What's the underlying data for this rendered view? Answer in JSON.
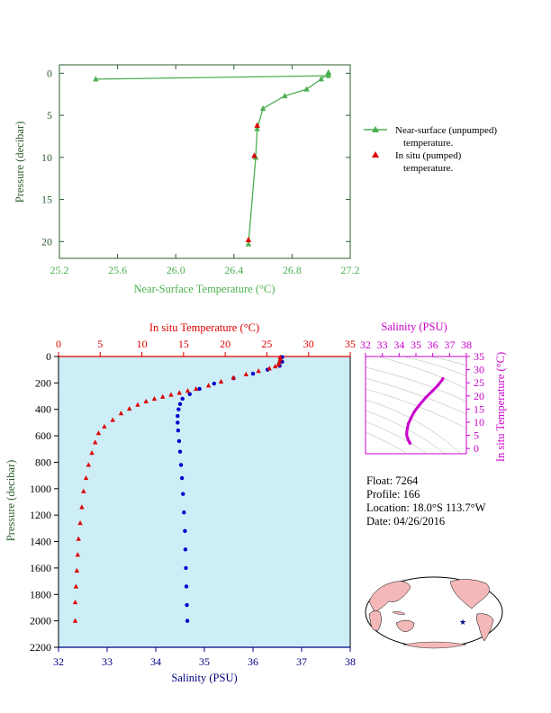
{
  "colors": {
    "green": "#4caf50",
    "axis_green": "#2e5e2e",
    "red": "#dd0000",
    "blue": "#0000cc",
    "magenta": "#cc00cc",
    "navy": "#000080",
    "plot_bg": "#cdeef7"
  },
  "legend": {
    "near_surface_line1": "Near-surface (unpumped)",
    "near_surface_line2": "temperature.",
    "insitu_line1": "In situ (pumped)",
    "insitu_line2": "temperature."
  },
  "info": {
    "float": "Float:  7264",
    "profile": "Profile:  166",
    "location": "Location:  18.0°S  113.7°W",
    "date": "Date:  04/26/2016"
  },
  "chart_data": [
    {
      "type": "line",
      "name": "near-surface-profile",
      "xlabel": "Near-Surface Temperature (°C)",
      "ylabel": "Pressure (decibar)",
      "xlim": [
        25.2,
        27.2
      ],
      "ylim": [
        22,
        -1
      ],
      "xticks": [
        "25.2",
        "25.6",
        "26.0",
        "26.4",
        "26.8",
        "27.2"
      ],
      "xtick_values": [
        25.2,
        25.6,
        26.0,
        26.4,
        26.8,
        27.2
      ],
      "yticks": [
        "0",
        "5",
        "10",
        "15",
        "20"
      ],
      "ytick_values": [
        0,
        5,
        10,
        15,
        20
      ],
      "series": [
        {
          "name": "Near-surface (unpumped) temperature.",
          "points": [
            [
              25.45,
              0.7
            ],
            [
              27.05,
              0.3
            ],
            [
              27.05,
              -0.1
            ],
            [
              27.05,
              0.0
            ],
            [
              27.0,
              0.7
            ],
            [
              26.9,
              1.9
            ],
            [
              26.75,
              2.7
            ],
            [
              26.6,
              4.2
            ],
            [
              26.56,
              6.6
            ],
            [
              26.55,
              10.0
            ],
            [
              26.5,
              20.3
            ]
          ]
        },
        {
          "name": "In situ (pumped) temperature.",
          "points": [
            [
              26.56,
              6.2
            ],
            [
              26.54,
              9.8
            ],
            [
              26.5,
              19.8
            ]
          ]
        }
      ]
    },
    {
      "type": "line",
      "name": "deep-profile",
      "xlabel_top": "In situ Temperature (°C)",
      "xlabel_bottom": "Salinity (PSU)",
      "ylabel": "Pressure (decibar)",
      "temp_lim": [
        0,
        35
      ],
      "sal_lim": [
        32,
        38
      ],
      "ylim": [
        2200,
        0
      ],
      "temp_ticks": [
        "0",
        "5",
        "10",
        "15",
        "20",
        "25",
        "30",
        "35"
      ],
      "temp_tick_values": [
        0,
        5,
        10,
        15,
        20,
        25,
        30,
        35
      ],
      "sal_ticks": [
        "32",
        "33",
        "34",
        "35",
        "36",
        "37",
        "38"
      ],
      "sal_tick_values": [
        32,
        33,
        34,
        35,
        36,
        37,
        38
      ],
      "pres_ticks": [
        "0",
        "200",
        "400",
        "600",
        "800",
        "1000",
        "1200",
        "1400",
        "1600",
        "1800",
        "2000",
        "2200"
      ],
      "pres_tick_values": [
        0,
        200,
        400,
        600,
        800,
        1000,
        1200,
        1400,
        1600,
        1800,
        2000,
        2200
      ],
      "temperature": [
        [
          26.6,
          5
        ],
        [
          26.6,
          20
        ],
        [
          26.5,
          40
        ],
        [
          26.4,
          60
        ],
        [
          26.0,
          75
        ],
        [
          25.3,
          90
        ],
        [
          24.0,
          110
        ],
        [
          22.5,
          135
        ],
        [
          21.0,
          160
        ],
        [
          19.5,
          190
        ],
        [
          18.0,
          220
        ],
        [
          16.5,
          245
        ],
        [
          15.5,
          260
        ],
        [
          14.5,
          275
        ],
        [
          13.5,
          290
        ],
        [
          12.5,
          305
        ],
        [
          11.5,
          320
        ],
        [
          10.5,
          340
        ],
        [
          9.5,
          365
        ],
        [
          8.5,
          395
        ],
        [
          7.5,
          430
        ],
        [
          6.5,
          480
        ],
        [
          5.5,
          530
        ],
        [
          4.8,
          580
        ],
        [
          4.4,
          650
        ],
        [
          4.0,
          730
        ],
        [
          3.6,
          820
        ],
        [
          3.3,
          920
        ],
        [
          3.0,
          1020
        ],
        [
          2.8,
          1140
        ],
        [
          2.6,
          1260
        ],
        [
          2.4,
          1380
        ],
        [
          2.3,
          1500
        ],
        [
          2.2,
          1620
        ],
        [
          2.1,
          1740
        ],
        [
          2.0,
          1860
        ],
        [
          2.0,
          2000
        ]
      ],
      "salinity": [
        [
          36.6,
          5
        ],
        [
          36.6,
          40
        ],
        [
          36.55,
          70
        ],
        [
          36.3,
          100
        ],
        [
          36.0,
          130
        ],
        [
          35.6,
          165
        ],
        [
          35.2,
          205
        ],
        [
          34.9,
          245
        ],
        [
          34.7,
          285
        ],
        [
          34.55,
          320
        ],
        [
          34.5,
          360
        ],
        [
          34.47,
          400
        ],
        [
          34.45,
          450
        ],
        [
          34.45,
          500
        ],
        [
          34.46,
          560
        ],
        [
          34.48,
          640
        ],
        [
          34.5,
          720
        ],
        [
          34.52,
          820
        ],
        [
          34.54,
          920
        ],
        [
          34.56,
          1040
        ],
        [
          34.58,
          1180
        ],
        [
          34.6,
          1320
        ],
        [
          34.61,
          1460
        ],
        [
          34.62,
          1600
        ],
        [
          34.63,
          1740
        ],
        [
          34.64,
          1880
        ],
        [
          34.65,
          2000
        ]
      ]
    },
    {
      "type": "scatter",
      "name": "ts-diagram",
      "xlabel": "Salinity (PSU)",
      "ylabel": "In situ Temperature (°C)",
      "xlim": [
        32,
        38
      ],
      "ylim": [
        -2,
        35
      ],
      "xticks": [
        "32",
        "33",
        "34",
        "35",
        "36",
        "37",
        "38"
      ],
      "xtick_values": [
        32,
        33,
        34,
        35,
        36,
        37,
        38
      ],
      "yticks": [
        "0",
        "5",
        "10",
        "15",
        "20",
        "25",
        "30",
        "35"
      ],
      "ytick_values": [
        0,
        5,
        10,
        15,
        20,
        25,
        30,
        35
      ],
      "points": [
        [
          34.65,
          2.0
        ],
        [
          34.62,
          2.3
        ],
        [
          34.58,
          2.8
        ],
        [
          34.54,
          3.3
        ],
        [
          34.5,
          4.0
        ],
        [
          34.46,
          4.8
        ],
        [
          34.45,
          5.5
        ],
        [
          34.46,
          6.5
        ],
        [
          34.5,
          8.0
        ],
        [
          34.55,
          9.5
        ],
        [
          34.7,
          11.5
        ],
        [
          34.9,
          14.0
        ],
        [
          35.2,
          16.5
        ],
        [
          35.6,
          19.5
        ],
        [
          36.0,
          22.0
        ],
        [
          36.3,
          24.0
        ],
        [
          36.55,
          26.0
        ],
        [
          36.6,
          26.6
        ]
      ]
    }
  ]
}
